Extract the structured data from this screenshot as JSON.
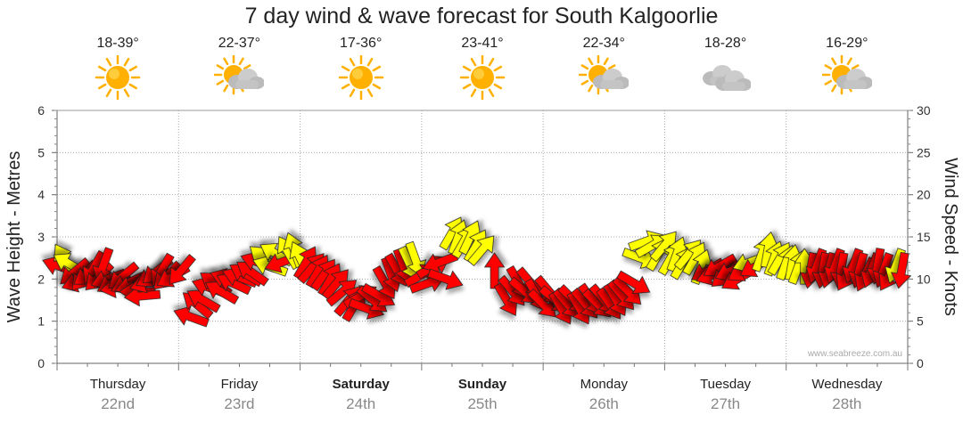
{
  "title": "7 day wind & wave forecast for South Kalgoorlie",
  "watermark": "www.seabreeze.com.au",
  "days": [
    {
      "name": "Thursday",
      "date": "22nd",
      "temp": "18-39°",
      "icon": "sun-icon",
      "bold": false
    },
    {
      "name": "Friday",
      "date": "23rd",
      "temp": "22-37°",
      "icon": "sun-cloud-icon",
      "bold": false
    },
    {
      "name": "Saturday",
      "date": "24th",
      "temp": "17-36°",
      "icon": "sun-icon",
      "bold": true
    },
    {
      "name": "Sunday",
      "date": "25th",
      "temp": "23-41°",
      "icon": "sun-icon",
      "bold": true
    },
    {
      "name": "Monday",
      "date": "26th",
      "temp": "22-34°",
      "icon": "sun-cloud-icon",
      "bold": false
    },
    {
      "name": "Tuesday",
      "date": "27th",
      "temp": "18-28°",
      "icon": "cloud-icon",
      "bold": false
    },
    {
      "name": "Wednesday",
      "date": "28th",
      "temp": "16-29°",
      "icon": "sun-cloud-icon",
      "bold": false
    }
  ],
  "colors": {
    "strong_wind": "#ff0000",
    "light_wind": "#ffff00",
    "sun": "#ffb000",
    "cloud": "#cccccc",
    "grid": "#aaaaaa"
  },
  "chart_data": {
    "type": "scatter",
    "left_axis": {
      "label": "Wave Height - Metres",
      "min": 0,
      "max": 6,
      "ticks": [
        "0",
        "1",
        "2",
        "3",
        "4",
        "5",
        "6"
      ]
    },
    "right_axis": {
      "label": "Wind Speed - Knots",
      "min": 0,
      "max": 30,
      "ticks": [
        "0",
        "5",
        "10",
        "15",
        "20",
        "25",
        "30"
      ]
    },
    "x_days": 7,
    "wind_arrows": [
      {
        "t": 0.02,
        "kn": 11.5,
        "dir": 200,
        "c": "r"
      },
      {
        "t": 0.06,
        "kn": 12.3,
        "dir": 240,
        "c": "y"
      },
      {
        "t": 0.1,
        "kn": 11.8,
        "dir": 210,
        "c": "y"
      },
      {
        "t": 0.14,
        "kn": 10.8,
        "dir": 140,
        "c": "r"
      },
      {
        "t": 0.18,
        "kn": 9.7,
        "dir": 160,
        "c": "r"
      },
      {
        "t": 0.22,
        "kn": 10.3,
        "dir": 130,
        "c": "r"
      },
      {
        "t": 0.26,
        "kn": 10.6,
        "dir": 145,
        "c": "r"
      },
      {
        "t": 0.3,
        "kn": 11.3,
        "dir": 120,
        "c": "r"
      },
      {
        "t": 0.34,
        "kn": 10.2,
        "dir": 135,
        "c": "r"
      },
      {
        "t": 0.38,
        "kn": 11.6,
        "dir": 110,
        "c": "r"
      },
      {
        "t": 0.42,
        "kn": 10.0,
        "dir": 160,
        "c": "r"
      },
      {
        "t": 0.46,
        "kn": 9.6,
        "dir": 150,
        "c": "r"
      },
      {
        "t": 0.5,
        "kn": 9.0,
        "dir": 170,
        "c": "r"
      },
      {
        "t": 0.54,
        "kn": 10.3,
        "dir": 140,
        "c": "r"
      },
      {
        "t": 0.58,
        "kn": 9.5,
        "dir": 155,
        "c": "r"
      },
      {
        "t": 0.62,
        "kn": 9.2,
        "dir": 165,
        "c": "r"
      },
      {
        "t": 0.66,
        "kn": 8.5,
        "dir": 180,
        "c": "r"
      },
      {
        "t": 0.7,
        "kn": 8.0,
        "dir": 175,
        "c": "r"
      },
      {
        "t": 0.74,
        "kn": 9.6,
        "dir": 160,
        "c": "r"
      },
      {
        "t": 0.78,
        "kn": 10.3,
        "dir": 150,
        "c": "r"
      },
      {
        "t": 0.82,
        "kn": 10.9,
        "dir": 140,
        "c": "r"
      },
      {
        "t": 0.86,
        "kn": 11.0,
        "dir": 120,
        "c": "r"
      },
      {
        "t": 0.9,
        "kn": 10.3,
        "dir": 135,
        "c": "r"
      },
      {
        "t": 0.95,
        "kn": 10.3,
        "dir": 150,
        "c": "r"
      },
      {
        "t": 1.02,
        "kn": 11.0,
        "dir": 130,
        "c": "r"
      },
      {
        "t": 1.1,
        "kn": 5.5,
        "dir": 200,
        "c": "r"
      },
      {
        "t": 1.15,
        "kn": 7.0,
        "dir": 220,
        "c": "r"
      },
      {
        "t": 1.2,
        "kn": 7.5,
        "dir": 210,
        "c": "r"
      },
      {
        "t": 1.25,
        "kn": 9.0,
        "dir": 200,
        "c": "r"
      },
      {
        "t": 1.3,
        "kn": 9.5,
        "dir": 215,
        "c": "r"
      },
      {
        "t": 1.35,
        "kn": 8.5,
        "dir": 210,
        "c": "r"
      },
      {
        "t": 1.4,
        "kn": 10.0,
        "dir": 200,
        "c": "r"
      },
      {
        "t": 1.45,
        "kn": 9.5,
        "dir": 205,
        "c": "r"
      },
      {
        "t": 1.5,
        "kn": 10.2,
        "dir": 200,
        "c": "r"
      },
      {
        "t": 1.55,
        "kn": 10.6,
        "dir": 210,
        "c": "r"
      },
      {
        "t": 1.6,
        "kn": 10.8,
        "dir": 215,
        "c": "r"
      },
      {
        "t": 1.65,
        "kn": 12.0,
        "dir": 200,
        "c": "r"
      },
      {
        "t": 1.7,
        "kn": 12.5,
        "dir": 220,
        "c": "y"
      },
      {
        "t": 1.75,
        "kn": 11.5,
        "dir": 200,
        "c": "y"
      },
      {
        "t": 1.8,
        "kn": 13.0,
        "dir": 210,
        "c": "y"
      },
      {
        "t": 1.85,
        "kn": 12.0,
        "dir": 160,
        "c": "r"
      },
      {
        "t": 1.9,
        "kn": 13.2,
        "dir": 240,
        "c": "y"
      },
      {
        "t": 1.95,
        "kn": 13.5,
        "dir": 250,
        "c": "y"
      },
      {
        "t": 2.0,
        "kn": 12.5,
        "dir": 245,
        "c": "y"
      },
      {
        "t": 2.05,
        "kn": 12.0,
        "dir": 300,
        "c": "r"
      },
      {
        "t": 2.1,
        "kn": 11.4,
        "dir": 310,
        "c": "r"
      },
      {
        "t": 2.15,
        "kn": 11.0,
        "dir": 300,
        "c": "r"
      },
      {
        "t": 2.2,
        "kn": 10.6,
        "dir": 305,
        "c": "r"
      },
      {
        "t": 2.25,
        "kn": 10.0,
        "dir": 300,
        "c": "r"
      },
      {
        "t": 2.3,
        "kn": 9.5,
        "dir": 310,
        "c": "r"
      },
      {
        "t": 2.35,
        "kn": 8.5,
        "dir": 320,
        "c": "r"
      },
      {
        "t": 2.4,
        "kn": 7.5,
        "dir": 310,
        "c": "r"
      },
      {
        "t": 2.45,
        "kn": 7.0,
        "dir": 300,
        "c": "r"
      },
      {
        "t": 2.5,
        "kn": 8.0,
        "dir": 330,
        "c": "r"
      },
      {
        "t": 2.55,
        "kn": 6.5,
        "dir": 20,
        "c": "r"
      },
      {
        "t": 2.6,
        "kn": 7.5,
        "dir": 40,
        "c": "r"
      },
      {
        "t": 2.65,
        "kn": 8.0,
        "dir": 30,
        "c": "r"
      },
      {
        "t": 2.7,
        "kn": 9.5,
        "dir": 60,
        "c": "r"
      },
      {
        "t": 2.75,
        "kn": 10.5,
        "dir": 70,
        "c": "r"
      },
      {
        "t": 2.8,
        "kn": 11.0,
        "dir": 60,
        "c": "r"
      },
      {
        "t": 2.85,
        "kn": 11.5,
        "dir": 70,
        "c": "r"
      },
      {
        "t": 2.9,
        "kn": 11.8,
        "dir": 65,
        "c": "y"
      },
      {
        "t": 2.95,
        "kn": 12.3,
        "dir": 70,
        "c": "y"
      },
      {
        "t": 3.0,
        "kn": 10.5,
        "dir": 330,
        "c": "r"
      },
      {
        "t": 3.05,
        "kn": 9.5,
        "dir": 340,
        "c": "r"
      },
      {
        "t": 3.1,
        "kn": 11.5,
        "dir": 330,
        "c": "r"
      },
      {
        "t": 3.15,
        "kn": 12.0,
        "dir": 160,
        "c": "r"
      },
      {
        "t": 3.2,
        "kn": 10.0,
        "dir": 20,
        "c": "r"
      },
      {
        "t": 3.25,
        "kn": 15.5,
        "dir": 300,
        "c": "y"
      },
      {
        "t": 3.3,
        "kn": 15.0,
        "dir": 290,
        "c": "y"
      },
      {
        "t": 3.35,
        "kn": 14.5,
        "dir": 300,
        "c": "y"
      },
      {
        "t": 3.4,
        "kn": 15.0,
        "dir": 295,
        "c": "y"
      },
      {
        "t": 3.45,
        "kn": 14.0,
        "dir": 300,
        "c": "y"
      },
      {
        "t": 3.5,
        "kn": 13.5,
        "dir": 310,
        "c": "y"
      },
      {
        "t": 3.6,
        "kn": 11.0,
        "dir": 270,
        "c": "r"
      },
      {
        "t": 3.7,
        "kn": 7.5,
        "dir": 60,
        "c": "r"
      },
      {
        "t": 3.75,
        "kn": 8.5,
        "dir": 50,
        "c": "r"
      },
      {
        "t": 3.8,
        "kn": 9.5,
        "dir": 60,
        "c": "r"
      },
      {
        "t": 3.85,
        "kn": 8.5,
        "dir": 40,
        "c": "r"
      },
      {
        "t": 3.9,
        "kn": 9.5,
        "dir": 50,
        "c": "r"
      },
      {
        "t": 3.95,
        "kn": 8.0,
        "dir": 60,
        "c": "r"
      },
      {
        "t": 4.0,
        "kn": 7.0,
        "dir": 45,
        "c": "r"
      },
      {
        "t": 4.05,
        "kn": 8.5,
        "dir": 50,
        "c": "r"
      },
      {
        "t": 4.1,
        "kn": 7.5,
        "dir": 40,
        "c": "r"
      },
      {
        "t": 4.15,
        "kn": 6.5,
        "dir": 60,
        "c": "r"
      },
      {
        "t": 4.2,
        "kn": 7.0,
        "dir": 50,
        "c": "r"
      },
      {
        "t": 4.25,
        "kn": 7.5,
        "dir": 45,
        "c": "r"
      },
      {
        "t": 4.3,
        "kn": 6.5,
        "dir": 60,
        "c": "r"
      },
      {
        "t": 4.35,
        "kn": 7.0,
        "dir": 50,
        "c": "r"
      },
      {
        "t": 4.4,
        "kn": 7.5,
        "dir": 55,
        "c": "r"
      },
      {
        "t": 4.45,
        "kn": 7.0,
        "dir": 45,
        "c": "r"
      },
      {
        "t": 4.5,
        "kn": 7.5,
        "dir": 50,
        "c": "r"
      },
      {
        "t": 4.55,
        "kn": 7.0,
        "dir": 55,
        "c": "r"
      },
      {
        "t": 4.6,
        "kn": 7.5,
        "dir": 60,
        "c": "r"
      },
      {
        "t": 4.65,
        "kn": 8.0,
        "dir": 50,
        "c": "r"
      },
      {
        "t": 4.7,
        "kn": 8.5,
        "dir": 45,
        "c": "r"
      },
      {
        "t": 4.75,
        "kn": 9.5,
        "dir": 30,
        "c": "r"
      },
      {
        "t": 4.8,
        "kn": 12.5,
        "dir": 20,
        "c": "y"
      },
      {
        "t": 4.85,
        "kn": 14.5,
        "dir": 340,
        "c": "y"
      },
      {
        "t": 4.9,
        "kn": 14.0,
        "dir": 330,
        "c": "y"
      },
      {
        "t": 4.95,
        "kn": 13.0,
        "dir": 300,
        "c": "y"
      },
      {
        "t": 5.0,
        "kn": 14.0,
        "dir": 310,
        "c": "y"
      },
      {
        "t": 5.05,
        "kn": 12.5,
        "dir": 300,
        "c": "y"
      },
      {
        "t": 5.1,
        "kn": 13.0,
        "dir": 290,
        "c": "y"
      },
      {
        "t": 5.15,
        "kn": 12.0,
        "dir": 300,
        "c": "y"
      },
      {
        "t": 5.2,
        "kn": 13.0,
        "dir": 310,
        "c": "y"
      },
      {
        "t": 5.25,
        "kn": 12.5,
        "dir": 300,
        "c": "y"
      },
      {
        "t": 5.3,
        "kn": 11.5,
        "dir": 290,
        "c": "y"
      },
      {
        "t": 5.35,
        "kn": 11.0,
        "dir": 150,
        "c": "r"
      },
      {
        "t": 5.4,
        "kn": 10.5,
        "dir": 160,
        "c": "r"
      },
      {
        "t": 5.45,
        "kn": 11.5,
        "dir": 150,
        "c": "r"
      },
      {
        "t": 5.5,
        "kn": 10.5,
        "dir": 140,
        "c": "r"
      },
      {
        "t": 5.55,
        "kn": 11.0,
        "dir": 155,
        "c": "r"
      },
      {
        "t": 5.6,
        "kn": 10.0,
        "dir": 150,
        "c": "r"
      },
      {
        "t": 5.65,
        "kn": 11.0,
        "dir": 150,
        "c": "r"
      },
      {
        "t": 5.7,
        "kn": 12.0,
        "dir": 160,
        "c": "y"
      },
      {
        "t": 5.75,
        "kn": 11.5,
        "dir": 150,
        "c": "r"
      },
      {
        "t": 5.8,
        "kn": 13.0,
        "dir": 290,
        "c": "y"
      },
      {
        "t": 5.85,
        "kn": 13.5,
        "dir": 280,
        "c": "y"
      },
      {
        "t": 5.9,
        "kn": 12.5,
        "dir": 290,
        "c": "y"
      },
      {
        "t": 5.95,
        "kn": 12.5,
        "dir": 300,
        "c": "y"
      },
      {
        "t": 6.0,
        "kn": 12.0,
        "dir": 290,
        "c": "y"
      },
      {
        "t": 6.05,
        "kn": 12.0,
        "dir": 280,
        "c": "y"
      },
      {
        "t": 6.1,
        "kn": 11.5,
        "dir": 290,
        "c": "y"
      },
      {
        "t": 6.15,
        "kn": 11.5,
        "dir": 270,
        "c": "y"
      },
      {
        "t": 6.2,
        "kn": 11.0,
        "dir": 100,
        "c": "r"
      },
      {
        "t": 6.25,
        "kn": 11.5,
        "dir": 110,
        "c": "r"
      },
      {
        "t": 6.3,
        "kn": 11.0,
        "dir": 100,
        "c": "r"
      },
      {
        "t": 6.35,
        "kn": 11.0,
        "dir": 105,
        "c": "r"
      },
      {
        "t": 6.4,
        "kn": 11.5,
        "dir": 110,
        "c": "r"
      },
      {
        "t": 6.45,
        "kn": 11.0,
        "dir": 100,
        "c": "r"
      },
      {
        "t": 6.5,
        "kn": 10.5,
        "dir": 120,
        "c": "r"
      },
      {
        "t": 6.55,
        "kn": 11.5,
        "dir": 110,
        "c": "r"
      },
      {
        "t": 6.6,
        "kn": 11.0,
        "dir": 105,
        "c": "r"
      },
      {
        "t": 6.65,
        "kn": 10.5,
        "dir": 115,
        "c": "r"
      },
      {
        "t": 6.7,
        "kn": 11.0,
        "dir": 110,
        "c": "r"
      },
      {
        "t": 6.75,
        "kn": 11.5,
        "dir": 100,
        "c": "r"
      },
      {
        "t": 6.8,
        "kn": 11.0,
        "dir": 110,
        "c": "r"
      },
      {
        "t": 6.85,
        "kn": 10.5,
        "dir": 120,
        "c": "r"
      },
      {
        "t": 6.9,
        "kn": 11.5,
        "dir": 110,
        "c": "y"
      },
      {
        "t": 6.95,
        "kn": 11.0,
        "dir": 100,
        "c": "r"
      }
    ]
  }
}
